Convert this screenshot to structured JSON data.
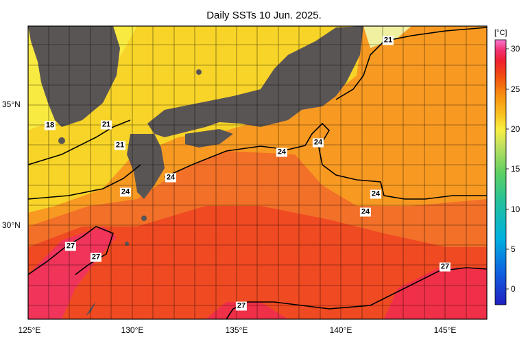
{
  "title": "Daily SSTs 10 Jun. 2025.",
  "colorbar": {
    "unit": "[°C]",
    "ticks": [
      "30",
      "25",
      "20",
      "15",
      "10",
      "5",
      "0"
    ],
    "colors": [
      "#2020c0",
      "#1060e0",
      "#00b0e0",
      "#20c0a0",
      "#60d060",
      "#c0e060",
      "#f8f040",
      "#f8c020",
      "#f89010",
      "#f05010",
      "#f02030",
      "#f03070",
      "#f878d0"
    ]
  },
  "axes": {
    "x_ticks": [
      "125°E",
      "130°E",
      "135°E",
      "140°E",
      "145°E"
    ],
    "y_ticks": [
      "35°N",
      "30°N"
    ]
  },
  "contour_labels": [
    "21",
    "18",
    "21",
    "21",
    "24",
    "24",
    "24",
    "24",
    "24",
    "24",
    "27",
    "27",
    "27",
    "27"
  ],
  "colors": {
    "land": "#5a5555",
    "warm_core": "#f02a40",
    "orange": "#f89820",
    "yellow": "#f8e030"
  }
}
